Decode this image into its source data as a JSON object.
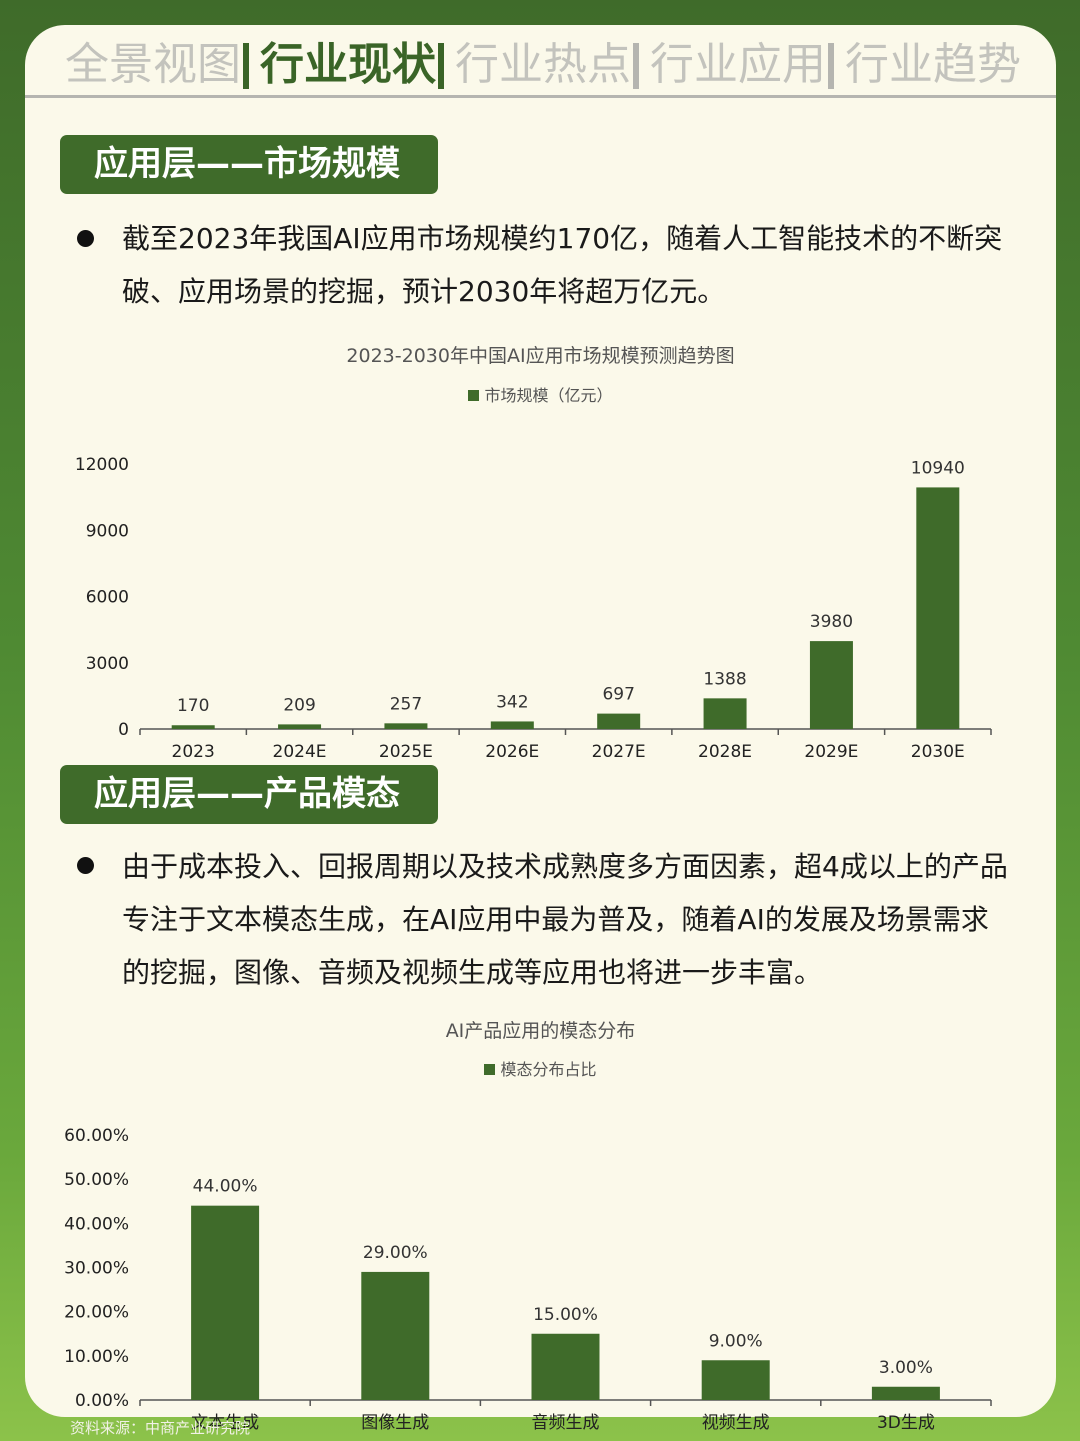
{
  "nav": {
    "tabs": [
      {
        "label": "全景视图",
        "active": false
      },
      {
        "label": "行业现状",
        "active": true
      },
      {
        "label": "行业热点",
        "active": false
      },
      {
        "label": "行业应用",
        "active": false
      },
      {
        "label": "行业趋势",
        "active": false
      }
    ]
  },
  "section1": {
    "tag": "应用层——市场规模",
    "paragraph": "截至2023年我国AI应用市场规模约170亿，随着人工智能技术的不断突破、应用场景的挖掘，预计2030年将超万亿元。"
  },
  "section2": {
    "tag": "应用层——产品模态",
    "paragraph": "由于成本投入、回报周期以及技术成熟度多方面因素，超4成以上的产品专注于文本模态生成，在AI应用中最为普及，随着AI的发展及场景需求的挖掘，图像、音频及视频生成等应用也将进一步丰富。"
  },
  "source": "资料来源：中商产业研究院",
  "colors": {
    "bar": "#3f6b2a",
    "accent": "#3a6427"
  },
  "chart_data": [
    {
      "type": "bar",
      "title": "2023-2030年中国AI应用市场规模预测趋势图",
      "categories": [
        "2023",
        "2024E",
        "2025E",
        "2026E",
        "2027E",
        "2028E",
        "2029E",
        "2030E"
      ],
      "series": [
        {
          "name": "市场规模（亿元）",
          "values": [
            170,
            209,
            257,
            342,
            697,
            1388,
            3980,
            10940
          ]
        }
      ],
      "data_labels": [
        "170",
        "209",
        "257",
        "342",
        "697",
        "1388",
        "3980",
        "10940"
      ],
      "yticks": [
        "0",
        "3000",
        "6000",
        "9000",
        "12000"
      ],
      "ylim": [
        0,
        12000
      ],
      "grid": false,
      "legend": "top-center"
    },
    {
      "type": "bar",
      "title": "AI产品应用的模态分布",
      "categories": [
        "文本生成",
        "图像生成",
        "音频生成",
        "视频生成",
        "3D生成"
      ],
      "series": [
        {
          "name": "模态分布占比",
          "values": [
            44,
            29,
            15,
            9,
            3
          ]
        }
      ],
      "data_labels": [
        "44.00%",
        "29.00%",
        "15.00%",
        "9.00%",
        "3.00%"
      ],
      "yticks": [
        "0.00%",
        "10.00%",
        "20.00%",
        "30.00%",
        "40.00%",
        "50.00%",
        "60.00%"
      ],
      "ylim": [
        0,
        60
      ],
      "grid": false,
      "legend": "top-center"
    }
  ]
}
